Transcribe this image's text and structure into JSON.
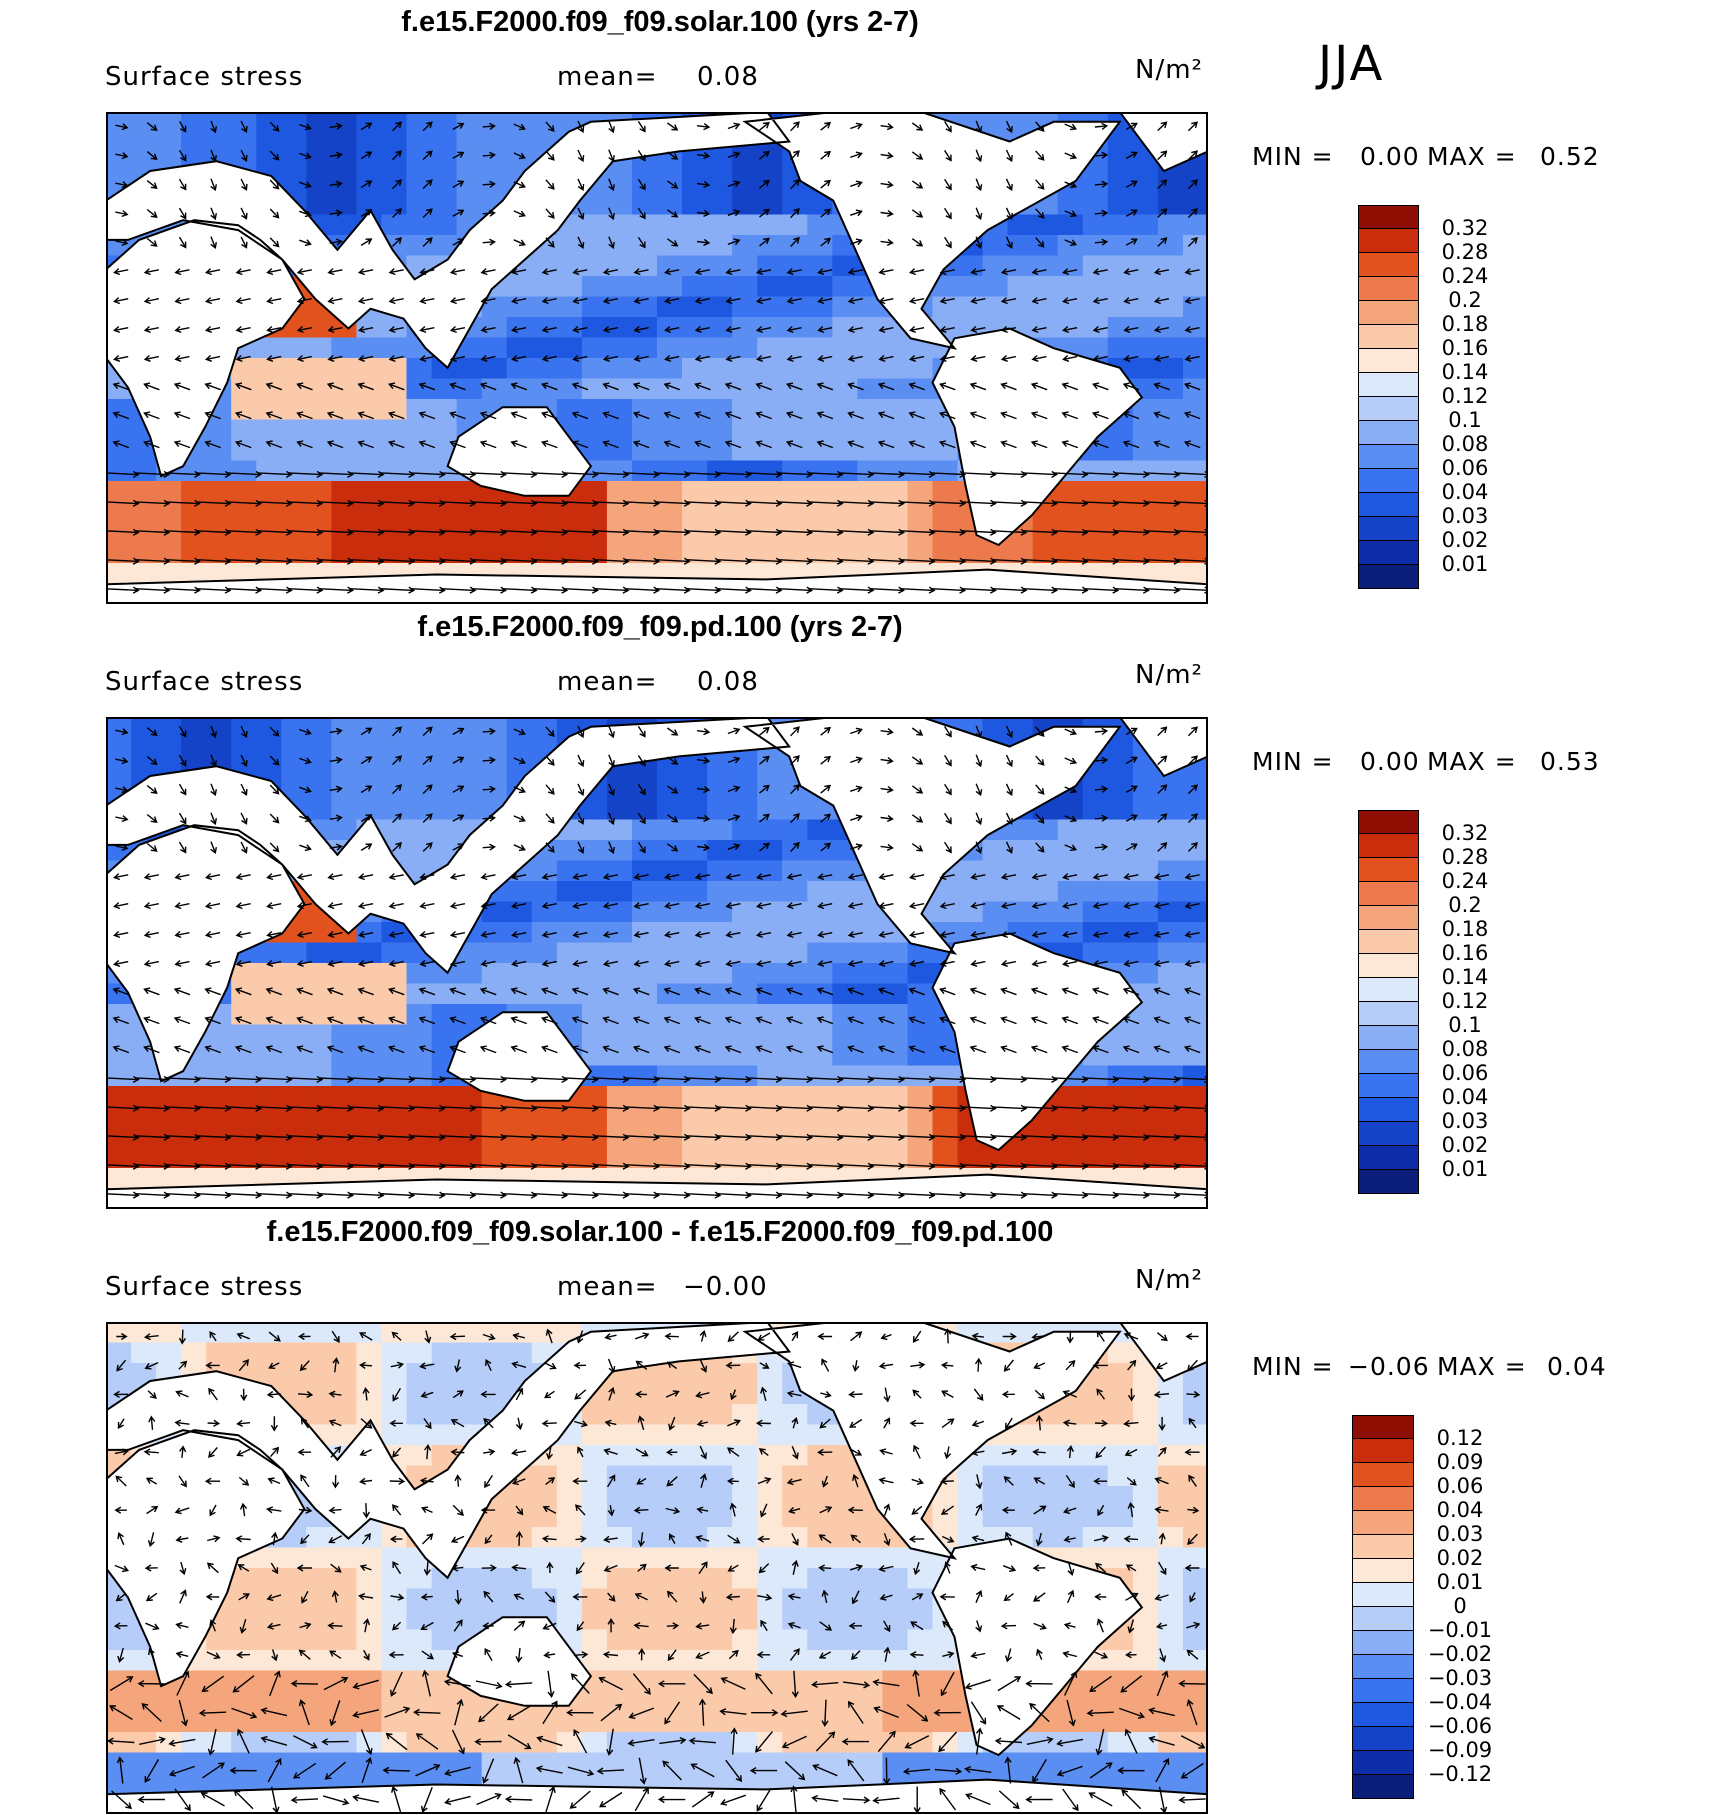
{
  "season": "JJA",
  "colorbars": {
    "abs": {
      "colors": [
        "#0b1f7a",
        "#0d2ea8",
        "#1543c8",
        "#1f58e0",
        "#3a73ef",
        "#5b8ef2",
        "#8aaef5",
        "#b5cdf8",
        "#dbe9fb",
        "#fde8d8",
        "#fbcaaa",
        "#f5a57c",
        "#ec7a4c",
        "#e2521f",
        "#c92d0b",
        "#8f0f04"
      ],
      "ticks": [
        "0.01",
        "0.02",
        "0.03",
        "0.04",
        "0.06",
        "0.08",
        "0.1",
        "0.12",
        "0.14",
        "0.16",
        "0.18",
        "0.2",
        "0.24",
        "0.28",
        "0.32"
      ]
    },
    "diff": {
      "colors": [
        "#0b1f7a",
        "#0d2ea8",
        "#1543c8",
        "#1f58e0",
        "#3a73ef",
        "#5b8ef2",
        "#8aaef5",
        "#b5cdf8",
        "#dbe9fb",
        "#fde8d8",
        "#fbcaaa",
        "#f5a57c",
        "#ec7a4c",
        "#e2521f",
        "#c92d0b",
        "#8f0f04"
      ],
      "ticks": [
        "−0.12",
        "−0.09",
        "−0.06",
        "−0.04",
        "−0.03",
        "−0.02",
        "−0.01",
        "0",
        "0.01",
        "0.02",
        "0.03",
        "0.04",
        "0.06",
        "0.09",
        "0.12"
      ]
    }
  },
  "panels": [
    {
      "title": "f.e15.F2000.f09_f09.solar.100 (yrs 2-7)",
      "variable": "Surface stress",
      "mean_label": "mean=",
      "mean_value": "0.08",
      "units": "N/m²",
      "min_label": "MIN =",
      "min_value": "0.00",
      "max_label": "MAX =",
      "max_value": "0.52"
    },
    {
      "title": "f.e15.F2000.f09_f09.pd.100 (yrs 2-7)",
      "variable": "Surface stress",
      "mean_label": "mean=",
      "mean_value": "0.08",
      "units": "N/m²",
      "min_label": "MIN =",
      "min_value": "0.00",
      "max_label": "MAX =",
      "max_value": "0.53"
    },
    {
      "title": "f.e15.F2000.f09_f09.solar.100 - f.e15.F2000.f09_f09.pd.100",
      "variable": "Surface stress",
      "mean_label": "mean=",
      "mean_value": "−0.00",
      "units": "N/m²",
      "min_label": "MIN =",
      "min_value": "−0.06",
      "max_label": "MAX =",
      "max_value": "0.04"
    }
  ],
  "chart_data": [
    {
      "type": "heatmap",
      "title": "f.e15.F2000.f09_f09.solar.100 (yrs 2-7)",
      "field": "Surface stress (JJA)",
      "units": "N/m²",
      "mean": 0.08,
      "min": 0.0,
      "max": 0.52,
      "levels": [
        0.01,
        0.02,
        0.03,
        0.04,
        0.06,
        0.08,
        0.1,
        0.12,
        0.14,
        0.16,
        0.18,
        0.2,
        0.24,
        0.28,
        0.32
      ],
      "vectors": "wind stress arrows"
    },
    {
      "type": "heatmap",
      "title": "f.e15.F2000.f09_f09.pd.100 (yrs 2-7)",
      "field": "Surface stress (JJA)",
      "units": "N/m²",
      "mean": 0.08,
      "min": 0.0,
      "max": 0.53,
      "levels": [
        0.01,
        0.02,
        0.03,
        0.04,
        0.06,
        0.08,
        0.1,
        0.12,
        0.14,
        0.16,
        0.18,
        0.2,
        0.24,
        0.28,
        0.32
      ],
      "vectors": "wind stress arrows"
    },
    {
      "type": "heatmap",
      "title": "f.e15.F2000.f09_f09.solar.100 - f.e15.F2000.f09_f09.pd.100",
      "field": "Surface stress difference (JJA)",
      "units": "N/m²",
      "mean": -0.0,
      "min": -0.06,
      "max": 0.04,
      "levels": [
        -0.12,
        -0.09,
        -0.06,
        -0.04,
        -0.03,
        -0.02,
        -0.01,
        0,
        0.01,
        0.02,
        0.03,
        0.04,
        0.06,
        0.09,
        0.12
      ],
      "vectors": "wind stress difference arrows"
    }
  ]
}
